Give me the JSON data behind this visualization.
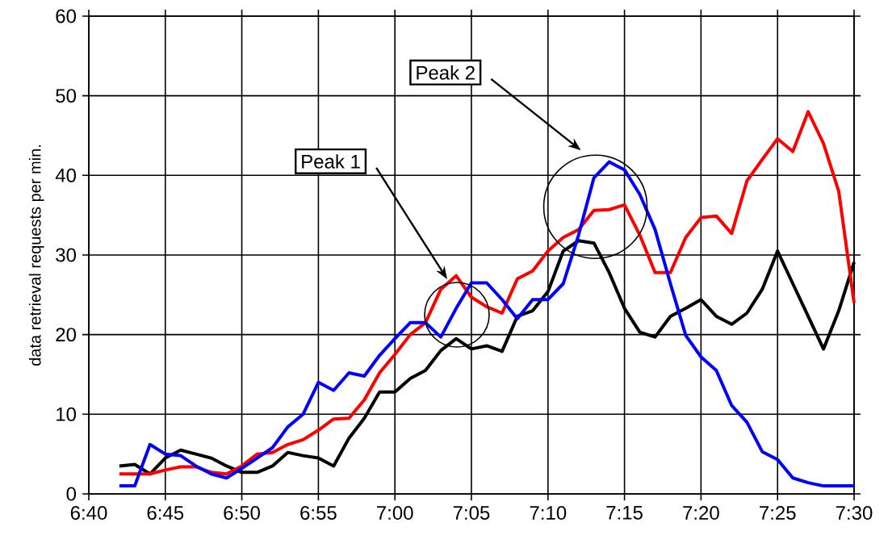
{
  "chart_data": {
    "type": "line",
    "ylabel": "data retrieval requests per min.",
    "x": [
      6.7,
      6.7167,
      6.7333,
      6.75,
      6.7667,
      6.7833,
      6.8,
      6.8167,
      6.8333,
      6.85,
      6.8667,
      6.8833,
      6.9,
      6.9167,
      6.9333,
      6.95,
      6.9667,
      6.9833,
      7,
      7.0167,
      7.0333,
      7.05,
      7.0667,
      7.0833,
      7.1,
      7.1167,
      7.1333,
      7.15,
      7.1667,
      7.1833,
      7.2,
      7.2167,
      7.2333,
      7.25,
      7.2667,
      7.2833,
      7.3,
      7.3167,
      7.3333,
      7.35,
      7.3667,
      7.3833,
      7.4,
      7.4167,
      7.4333,
      7.45,
      7.4667,
      7.4833,
      7.5
    ],
    "series": [
      {
        "color": "#000000",
        "values": [
          3.5,
          3.7,
          2.5,
          4.5,
          5.5,
          5,
          4.5,
          3.5,
          2.7,
          2.7,
          3.5,
          5.2,
          4.8,
          4.5,
          3.5,
          7,
          9.5,
          12.8,
          12.8,
          14.5,
          15.5,
          18,
          19.5,
          18.2,
          18.6,
          17.9,
          22.3,
          23,
          25.4,
          30.5,
          31.8,
          31.5,
          27.8,
          23.3,
          20.3,
          19.7,
          22.3,
          23.3,
          24.4,
          22.3,
          21.3,
          22.7,
          25.7,
          30.5,
          26.4,
          22.3,
          18.2,
          23,
          29.1
        ]
      },
      {
        "color": "#ff0000",
        "values": [
          2.5,
          2.5,
          2.5,
          3,
          3.4,
          3.4,
          2.7,
          2.5,
          3.5,
          5,
          5.2,
          6.2,
          6.8,
          8,
          9.4,
          9.5,
          11.8,
          15.2,
          17.5,
          20,
          21.5,
          25.7,
          27.4,
          24.7,
          23.5,
          22.7,
          27,
          28,
          30.5,
          32.2,
          33.2,
          35.6,
          35.7,
          36.3,
          32.5,
          27.8,
          27.8,
          32.2,
          34.7,
          34.9,
          32.7,
          39.3,
          42,
          44.6,
          43,
          48,
          44,
          38,
          24
        ]
      },
      {
        "color": "#0000ff",
        "values": [
          1,
          1,
          6.2,
          5,
          4.8,
          3.5,
          2.5,
          2,
          3.2,
          4.5,
          5.8,
          8.4,
          10,
          14,
          13,
          15.2,
          14.8,
          17.4,
          19.5,
          21.5,
          21.5,
          19.7,
          23.3,
          26.5,
          26.5,
          24.4,
          22,
          24.4,
          24.4,
          26.4,
          32.5,
          39.7,
          41.7,
          40.7,
          37.6,
          33.2,
          26.4,
          19.9,
          17.2,
          15.5,
          11.1,
          9,
          5.3,
          4.3,
          2,
          1.4,
          1,
          1,
          1
        ]
      }
    ],
    "xlim": [
      6.6667,
      7.5
    ],
    "xticks": [
      {
        "value": 6.6667,
        "label": "6:40"
      },
      {
        "value": 6.75,
        "label": "6:45"
      },
      {
        "value": 6.8333,
        "label": "6:50"
      },
      {
        "value": 6.9167,
        "label": "6:55"
      },
      {
        "value": 7,
        "label": "7:00"
      },
      {
        "value": 7.0833,
        "label": "7:05"
      },
      {
        "value": 7.1667,
        "label": "7:10"
      },
      {
        "value": 7.25,
        "label": "7:15"
      },
      {
        "value": 7.3333,
        "label": "7:20"
      },
      {
        "value": 7.4167,
        "label": "7:25"
      },
      {
        "value": 7.5,
        "label": "7:30"
      }
    ],
    "ylim": [
      0,
      60
    ],
    "yticks": [
      0,
      10,
      20,
      30,
      40,
      50,
      60
    ],
    "grid": true,
    "marker": "none",
    "line_style": "solid",
    "annotations": [
      "Peak 1",
      "Peak 2"
    ]
  }
}
